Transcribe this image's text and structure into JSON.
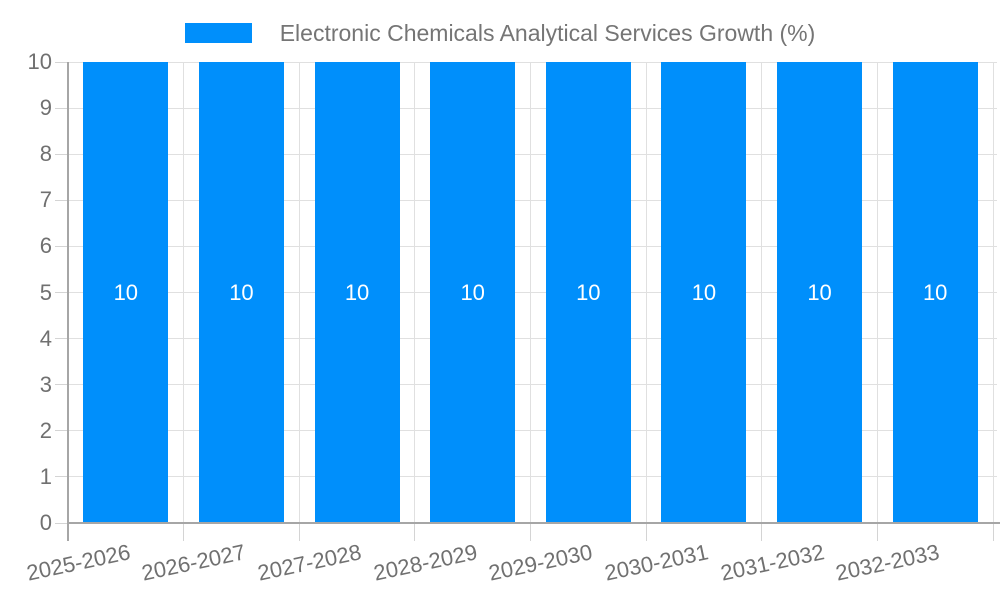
{
  "chart_data": {
    "type": "bar",
    "title": "Electronic Chemicals Analytical Services Growth (%)",
    "categories": [
      "2025-2026",
      "2026-2027",
      "2027-2028",
      "2028-2029",
      "2029-2030",
      "2030-2031",
      "2031-2032",
      "2032-2033"
    ],
    "values": [
      10,
      10,
      10,
      10,
      10,
      10,
      10,
      10
    ],
    "data_labels": [
      "10",
      "10",
      "10",
      "10",
      "10",
      "10",
      "10",
      "10"
    ],
    "xlabel": "",
    "ylabel": "",
    "ylim": [
      0,
      10
    ],
    "yticks": [
      0,
      1,
      2,
      3,
      4,
      5,
      6,
      7,
      8,
      9,
      10
    ],
    "xlabel_rotation_deg": -12,
    "grid": true,
    "legend_position": "top",
    "colors": {
      "bar": "#008FFB",
      "data_label": "#FFFFFF",
      "grid": "#E0E0E0",
      "axis_line": "#A6A6A6",
      "tick": "#D4D4D4",
      "tick_text": "#707070",
      "title_text": "#757575",
      "background": "#FFFFFF"
    }
  }
}
